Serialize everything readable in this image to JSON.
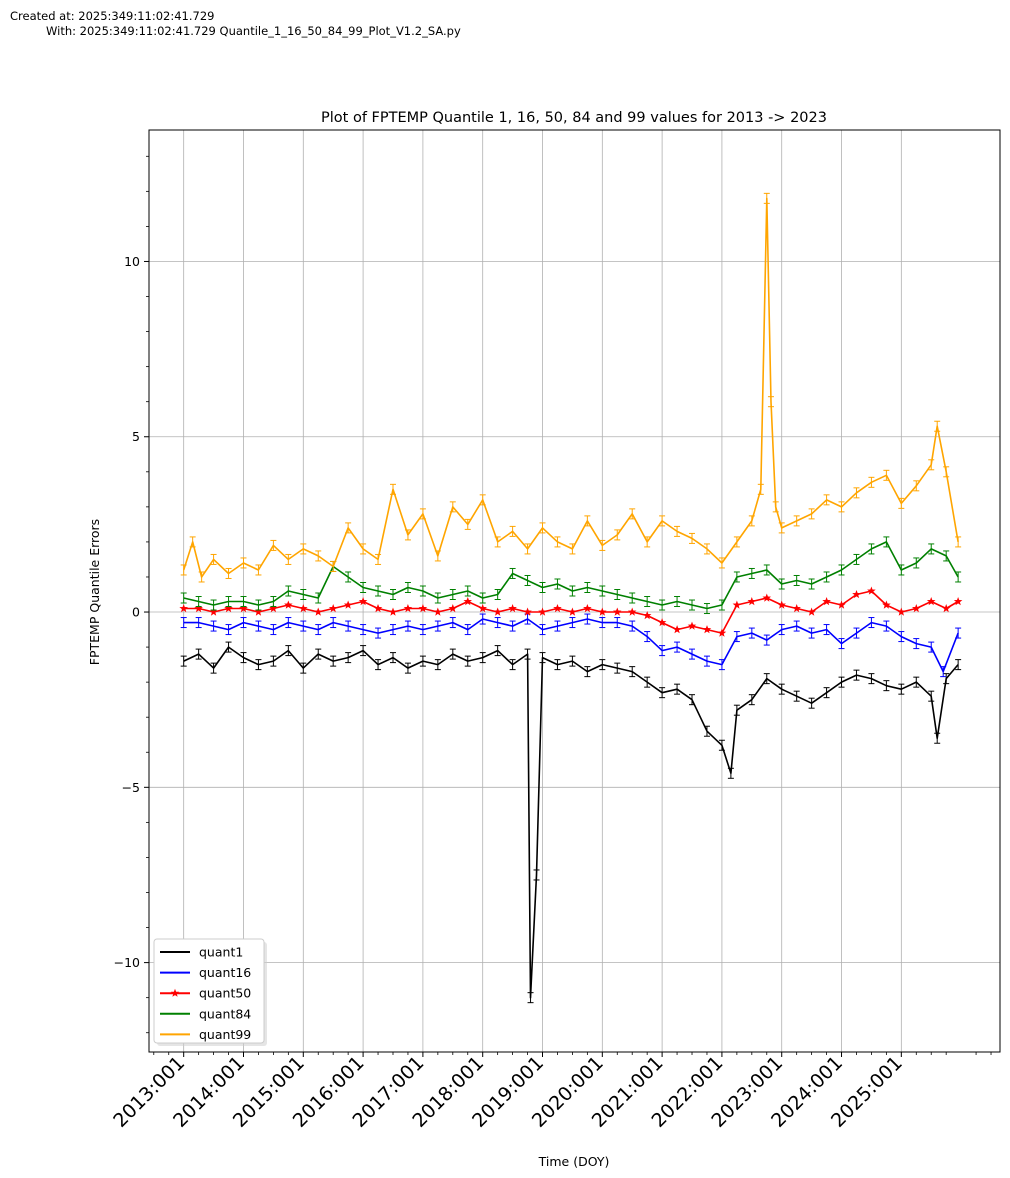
{
  "header": {
    "created_line": "Created at: 2025:349:11:02:41.729",
    "with_line": "With: 2025:349:11:02:41.729 Quantile_1_16_50_84_99_Plot_V1.2_SA.py"
  },
  "chart_data": {
    "type": "line",
    "title": "Plot of FPTEMP Quantile 1, 16, 50, 84 and 99 values for 2013 ->  2023",
    "xlabel": "Time (DOY)",
    "ylabel": "FPTEMP Quantile Errors",
    "xlim": [
      2012.42,
      2026.65
    ],
    "ylim": [
      -12.55,
      13.75
    ],
    "x_ticks": [
      2013,
      2014,
      2015,
      2016,
      2017,
      2018,
      2019,
      2020,
      2021,
      2022,
      2023,
      2024,
      2025
    ],
    "x_tick_labels": [
      "2013:001",
      "2014:001",
      "2015:001",
      "2016:001",
      "2017:001",
      "2018:001",
      "2019:001",
      "2020:001",
      "2021:001",
      "2022:001",
      "2023:001",
      "2024:001",
      "2025:001"
    ],
    "y_ticks": [
      -10,
      -5,
      0,
      5,
      10
    ],
    "y_tick_labels": [
      "−10",
      "−5",
      "0",
      "5",
      "10"
    ],
    "grid": true,
    "legend_position": "lower-left",
    "series": [
      {
        "name": "quant1",
        "color": "#000000",
        "marker": "errorbar",
        "x": [
          2013.0,
          2013.25,
          2013.5,
          2013.75,
          2014.0,
          2014.25,
          2014.5,
          2014.75,
          2015.0,
          2015.25,
          2015.5,
          2015.75,
          2016.0,
          2016.25,
          2016.5,
          2016.75,
          2017.0,
          2017.25,
          2017.5,
          2017.75,
          2018.0,
          2018.25,
          2018.5,
          2018.75,
          2018.8,
          2018.9,
          2019.0,
          2019.25,
          2019.5,
          2019.75,
          2020.0,
          2020.25,
          2020.5,
          2020.75,
          2021.0,
          2021.25,
          2021.5,
          2021.75,
          2022.0,
          2022.15,
          2022.25,
          2022.5,
          2022.75,
          2023.0,
          2023.25,
          2023.5,
          2023.75,
          2024.0,
          2024.25,
          2024.5,
          2024.75,
          2025.0,
          2025.25,
          2025.5,
          2025.6,
          2025.75,
          2025.95
        ],
        "y": [
          -1.4,
          -1.2,
          -1.6,
          -1.0,
          -1.3,
          -1.5,
          -1.4,
          -1.1,
          -1.6,
          -1.2,
          -1.4,
          -1.3,
          -1.1,
          -1.5,
          -1.3,
          -1.6,
          -1.4,
          -1.5,
          -1.2,
          -1.4,
          -1.3,
          -1.1,
          -1.5,
          -1.2,
          -11.0,
          -7.5,
          -1.3,
          -1.5,
          -1.4,
          -1.7,
          -1.5,
          -1.6,
          -1.7,
          -2.0,
          -2.3,
          -2.2,
          -2.5,
          -3.4,
          -3.8,
          -4.6,
          -2.8,
          -2.5,
          -1.9,
          -2.2,
          -2.4,
          -2.6,
          -2.3,
          -2.0,
          -1.8,
          -1.9,
          -2.1,
          -2.2,
          -2.0,
          -2.4,
          -3.6,
          -1.9,
          -1.5
        ]
      },
      {
        "name": "quant16",
        "color": "#0000ff",
        "marker": "errorbar",
        "x": [
          2013.0,
          2013.25,
          2013.5,
          2013.75,
          2014.0,
          2014.25,
          2014.5,
          2014.75,
          2015.0,
          2015.25,
          2015.5,
          2015.75,
          2016.0,
          2016.25,
          2016.5,
          2016.75,
          2017.0,
          2017.25,
          2017.5,
          2017.75,
          2018.0,
          2018.25,
          2018.5,
          2018.75,
          2019.0,
          2019.25,
          2019.5,
          2019.75,
          2020.0,
          2020.25,
          2020.5,
          2020.75,
          2021.0,
          2021.25,
          2021.5,
          2021.75,
          2022.0,
          2022.25,
          2022.5,
          2022.75,
          2023.0,
          2023.25,
          2023.5,
          2023.75,
          2024.0,
          2024.25,
          2024.5,
          2024.75,
          2025.0,
          2025.25,
          2025.5,
          2025.7,
          2025.95
        ],
        "y": [
          -0.3,
          -0.3,
          -0.4,
          -0.5,
          -0.3,
          -0.4,
          -0.5,
          -0.3,
          -0.4,
          -0.5,
          -0.3,
          -0.4,
          -0.5,
          -0.6,
          -0.5,
          -0.4,
          -0.5,
          -0.4,
          -0.3,
          -0.5,
          -0.2,
          -0.3,
          -0.4,
          -0.2,
          -0.5,
          -0.4,
          -0.3,
          -0.2,
          -0.3,
          -0.3,
          -0.4,
          -0.7,
          -1.1,
          -1.0,
          -1.2,
          -1.4,
          -1.5,
          -0.7,
          -0.6,
          -0.8,
          -0.5,
          -0.4,
          -0.6,
          -0.5,
          -0.9,
          -0.6,
          -0.3,
          -0.4,
          -0.7,
          -0.9,
          -1.0,
          -1.7,
          -0.6
        ]
      },
      {
        "name": "quant50",
        "color": "#ff0000",
        "marker": "star",
        "x": [
          2013.0,
          2013.25,
          2013.5,
          2013.75,
          2014.0,
          2014.25,
          2014.5,
          2014.75,
          2015.0,
          2015.25,
          2015.5,
          2015.75,
          2016.0,
          2016.25,
          2016.5,
          2016.75,
          2017.0,
          2017.25,
          2017.5,
          2017.75,
          2018.0,
          2018.25,
          2018.5,
          2018.75,
          2019.0,
          2019.25,
          2019.5,
          2019.75,
          2020.0,
          2020.25,
          2020.5,
          2020.75,
          2021.0,
          2021.25,
          2021.5,
          2021.75,
          2022.0,
          2022.25,
          2022.5,
          2022.75,
          2023.0,
          2023.25,
          2023.5,
          2023.75,
          2024.0,
          2024.25,
          2024.5,
          2024.75,
          2025.0,
          2025.25,
          2025.5,
          2025.75,
          2025.95
        ],
        "y": [
          0.1,
          0.1,
          0.0,
          0.1,
          0.1,
          0.0,
          0.1,
          0.2,
          0.1,
          0.0,
          0.1,
          0.2,
          0.3,
          0.1,
          0.0,
          0.1,
          0.1,
          0.0,
          0.1,
          0.3,
          0.1,
          0.0,
          0.1,
          0.0,
          0.0,
          0.1,
          0.0,
          0.1,
          0.0,
          0.0,
          0.0,
          -0.1,
          -0.3,
          -0.5,
          -0.4,
          -0.5,
          -0.6,
          0.2,
          0.3,
          0.4,
          0.2,
          0.1,
          0.0,
          0.3,
          0.2,
          0.5,
          0.6,
          0.2,
          0.0,
          0.1,
          0.3,
          0.1,
          0.3
        ]
      },
      {
        "name": "quant84",
        "color": "#008000",
        "marker": "errorbar",
        "x": [
          2013.0,
          2013.25,
          2013.5,
          2013.75,
          2014.0,
          2014.25,
          2014.5,
          2014.75,
          2015.0,
          2015.25,
          2015.5,
          2015.75,
          2016.0,
          2016.25,
          2016.5,
          2016.75,
          2017.0,
          2017.25,
          2017.5,
          2017.75,
          2018.0,
          2018.25,
          2018.5,
          2018.75,
          2019.0,
          2019.25,
          2019.5,
          2019.75,
          2020.0,
          2020.25,
          2020.5,
          2020.75,
          2021.0,
          2021.25,
          2021.5,
          2021.75,
          2022.0,
          2022.25,
          2022.5,
          2022.75,
          2023.0,
          2023.25,
          2023.5,
          2023.75,
          2024.0,
          2024.25,
          2024.5,
          2024.75,
          2025.0,
          2025.25,
          2025.5,
          2025.75,
          2025.95
        ],
        "y": [
          0.4,
          0.3,
          0.2,
          0.3,
          0.3,
          0.2,
          0.3,
          0.6,
          0.5,
          0.4,
          1.3,
          1.0,
          0.7,
          0.6,
          0.5,
          0.7,
          0.6,
          0.4,
          0.5,
          0.6,
          0.4,
          0.5,
          1.1,
          0.9,
          0.7,
          0.8,
          0.6,
          0.7,
          0.6,
          0.5,
          0.4,
          0.3,
          0.2,
          0.3,
          0.2,
          0.1,
          0.2,
          1.0,
          1.1,
          1.2,
          0.8,
          0.9,
          0.8,
          1.0,
          1.2,
          1.5,
          1.8,
          2.0,
          1.2,
          1.4,
          1.8,
          1.6,
          1.0
        ]
      },
      {
        "name": "quant99",
        "color": "#ffa500",
        "marker": "errorbar",
        "x": [
          2013.0,
          2013.15,
          2013.3,
          2013.5,
          2013.75,
          2014.0,
          2014.25,
          2014.5,
          2014.75,
          2015.0,
          2015.25,
          2015.5,
          2015.75,
          2016.0,
          2016.25,
          2016.5,
          2016.75,
          2017.0,
          2017.25,
          2017.5,
          2017.75,
          2018.0,
          2018.25,
          2018.5,
          2018.75,
          2019.0,
          2019.25,
          2019.5,
          2019.75,
          2020.0,
          2020.25,
          2020.5,
          2020.75,
          2021.0,
          2021.25,
          2021.5,
          2021.75,
          2022.0,
          2022.25,
          2022.5,
          2022.65,
          2022.75,
          2022.82,
          2022.9,
          2023.0,
          2023.25,
          2023.5,
          2023.75,
          2024.0,
          2024.25,
          2024.5,
          2024.75,
          2025.0,
          2025.25,
          2025.5,
          2025.6,
          2025.75,
          2025.95
        ],
        "y": [
          1.2,
          2.0,
          1.0,
          1.5,
          1.1,
          1.4,
          1.2,
          1.9,
          1.5,
          1.8,
          1.6,
          1.3,
          2.4,
          1.8,
          1.5,
          3.5,
          2.2,
          2.8,
          1.6,
          3.0,
          2.5,
          3.2,
          2.0,
          2.3,
          1.8,
          2.4,
          2.0,
          1.8,
          2.6,
          1.9,
          2.2,
          2.8,
          2.0,
          2.6,
          2.3,
          2.1,
          1.8,
          1.4,
          2.0,
          2.6,
          3.5,
          11.8,
          6.0,
          3.0,
          2.4,
          2.6,
          2.8,
          3.2,
          3.0,
          3.4,
          3.7,
          3.9,
          3.1,
          3.6,
          4.2,
          5.3,
          4.0,
          2.0
        ]
      }
    ]
  }
}
